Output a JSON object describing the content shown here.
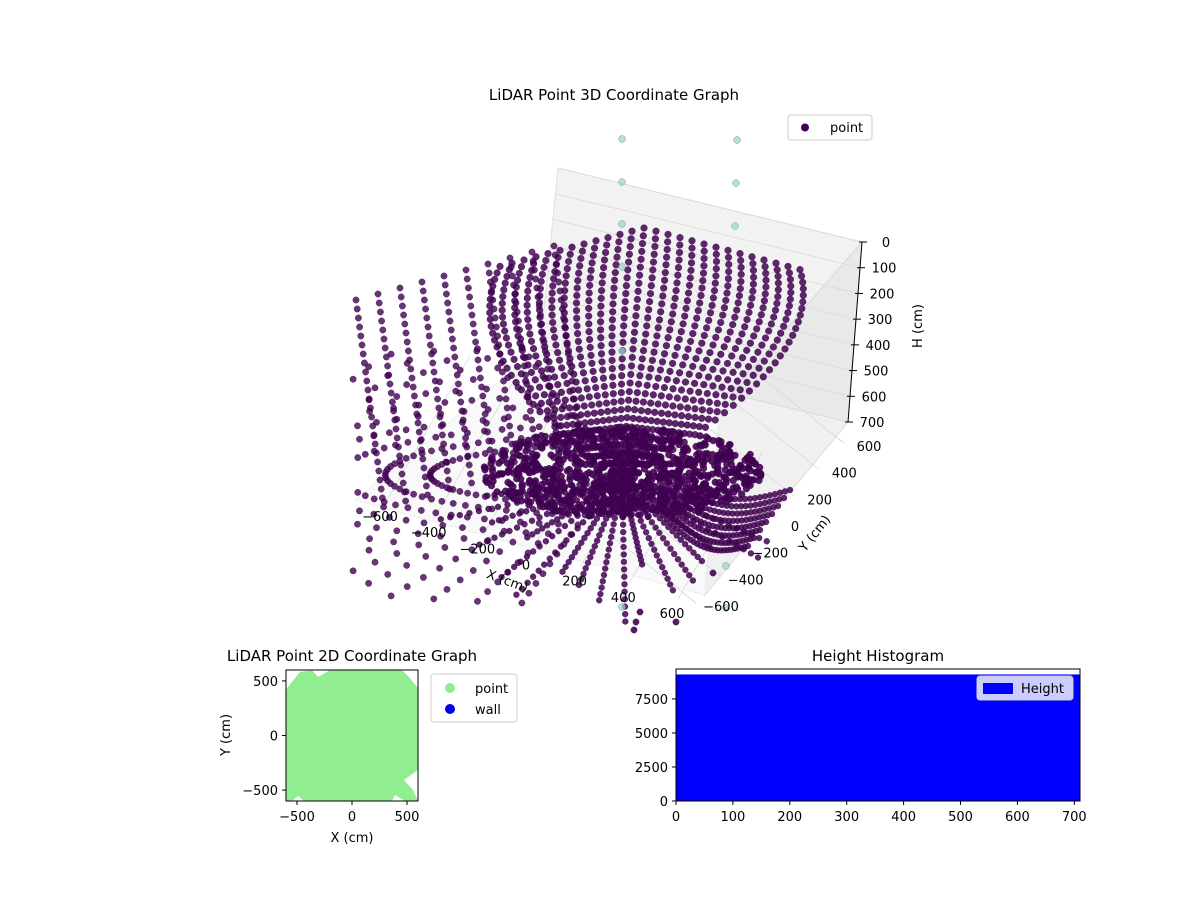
{
  "chart_data": [
    {
      "type": "scatter",
      "projection": "3d",
      "title": "LiDAR Point 3D Coordinate Graph",
      "xlabel": "X (cm)",
      "ylabel": "Y (cm)",
      "zlabel": "H (cm)",
      "xticks": [
        "−600",
        "−400",
        "−200",
        "0",
        "200",
        "400",
        "600"
      ],
      "yticks": [
        "−600",
        "−400",
        "−200",
        "0",
        "200",
        "400",
        "600"
      ],
      "zticks": [
        "0",
        "100",
        "200",
        "300",
        "400",
        "500",
        "600",
        "700"
      ],
      "xlim": [
        -600,
        600
      ],
      "ylim": [
        -600,
        600
      ],
      "zlim": [
        0,
        700
      ],
      "z_inverted": true,
      "grid": true,
      "legend": {
        "placement": "upper-right",
        "entries": [
          {
            "label": "point",
            "color": "#440154"
          }
        ]
      },
      "series": [
        {
          "name": "point",
          "color": "#440154",
          "description": "dense radial rings of LiDAR returns converging toward the sensor origin"
        }
      ],
      "highlight_color": "#9fd4cc"
    },
    {
      "type": "scatter",
      "title": "LiDAR Point 2D Coordinate Graph",
      "xlabel": "X (cm)",
      "ylabel": "Y (cm)",
      "xticks": [
        "−500",
        "0",
        "500"
      ],
      "yticks": [
        "−500",
        "0",
        "500"
      ],
      "xlim": [
        -600,
        600
      ],
      "ylim": [
        -600,
        600
      ],
      "legend": {
        "placement": "outside-right",
        "entries": [
          {
            "label": "point",
            "color": "#90ee90"
          },
          {
            "label": "wall",
            "color": "#0000ee"
          }
        ]
      },
      "series": [
        {
          "name": "point",
          "color": "#90ee90"
        },
        {
          "name": "wall",
          "color": "#0000ee"
        }
      ]
    },
    {
      "type": "bar",
      "title": "Height Histogram",
      "xticks": [
        "0",
        "100",
        "200",
        "300",
        "400",
        "500",
        "600",
        "700"
      ],
      "yticks": [
        "0",
        "2500",
        "5000",
        "7500"
      ],
      "xlim": [
        0,
        710
      ],
      "ylim": [
        0,
        9700
      ],
      "bins": {
        "start": 0,
        "end": 710,
        "value": 9300
      },
      "legend": {
        "placement": "upper-right",
        "entries": [
          {
            "label": "Height",
            "color": "#0000ff"
          }
        ]
      },
      "series": [
        {
          "name": "Height",
          "color": "#0000ff"
        }
      ]
    }
  ]
}
